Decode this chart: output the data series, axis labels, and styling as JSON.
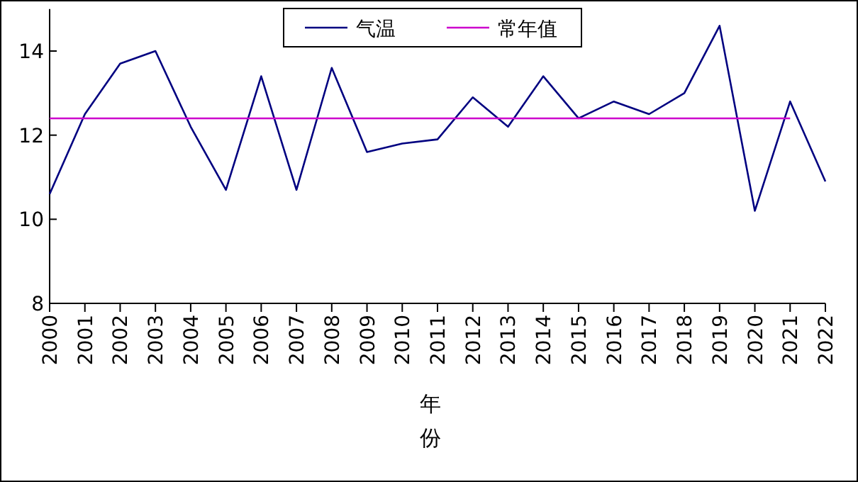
{
  "chart_data": {
    "type": "line",
    "xlabel": "年份",
    "categories": [
      "2000",
      "2001",
      "2002",
      "2003",
      "2004",
      "2005",
      "2006",
      "2007",
      "2008",
      "2009",
      "2010",
      "2011",
      "2012",
      "2013",
      "2014",
      "2015",
      "2016",
      "2017",
      "2018",
      "2019",
      "2020",
      "2021",
      "2022"
    ],
    "series": [
      {
        "name": "气温",
        "color": "#000080",
        "values": [
          10.6,
          12.5,
          13.7,
          14.0,
          12.2,
          10.7,
          13.4,
          10.7,
          13.6,
          11.6,
          11.8,
          11.9,
          12.9,
          12.2,
          13.4,
          12.4,
          12.8,
          12.5,
          13.0,
          14.6,
          10.2,
          12.8,
          10.9
        ]
      },
      {
        "name": "常年值",
        "color": "#cc00cc",
        "values": [
          12.4,
          12.4,
          12.4,
          12.4,
          12.4,
          12.4,
          12.4,
          12.4,
          12.4,
          12.4,
          12.4,
          12.4,
          12.4,
          12.4,
          12.4,
          12.4,
          12.4,
          12.4,
          12.4,
          12.4,
          12.4,
          12.4,
          null
        ]
      }
    ],
    "ylim": [
      8,
      15
    ],
    "yticks": [
      8,
      10,
      12,
      14
    ],
    "grid": false,
    "legend": "top",
    "marker": "none",
    "line_style": "solid"
  }
}
